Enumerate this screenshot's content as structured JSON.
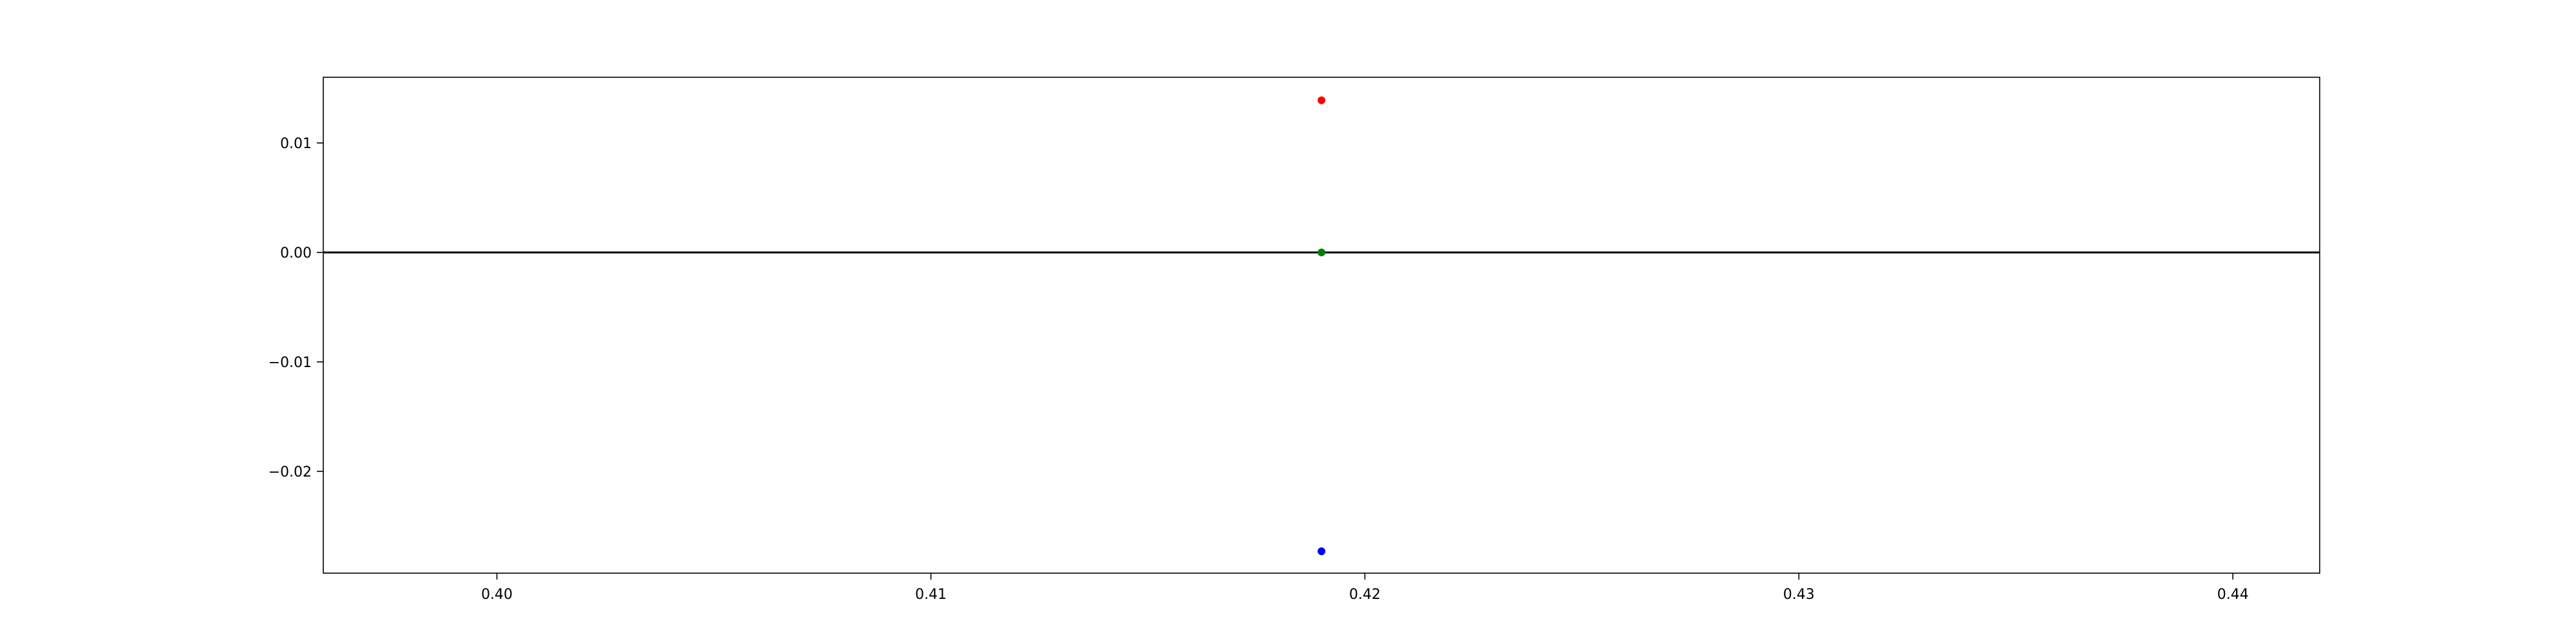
{
  "chart_data": {
    "type": "scatter",
    "title": "",
    "xlabel": "",
    "ylabel": "",
    "xlim": [
      0.396,
      0.442
    ],
    "ylim": [
      -0.0293,
      0.016
    ],
    "grid": false,
    "xticks": [
      0.4,
      0.41,
      0.42,
      0.43,
      0.44
    ],
    "xtick_labels": [
      "0.40",
      "0.41",
      "0.42",
      "0.43",
      "0.44"
    ],
    "yticks": [
      0.01,
      0.0,
      -0.01,
      -0.02
    ],
    "ytick_labels": [
      "0.01",
      "0.00",
      "−0.01",
      "−0.02"
    ],
    "reference_lines": [
      {
        "axis": "y",
        "value": 0.0,
        "color": "#000000"
      }
    ],
    "points": [
      {
        "x": 0.419,
        "y": 0.0139,
        "color": "#ff0000"
      },
      {
        "x": 0.419,
        "y": 0.0,
        "color": "#008000"
      },
      {
        "x": 0.419,
        "y": -0.0273,
        "color": "#0000ff"
      }
    ]
  }
}
